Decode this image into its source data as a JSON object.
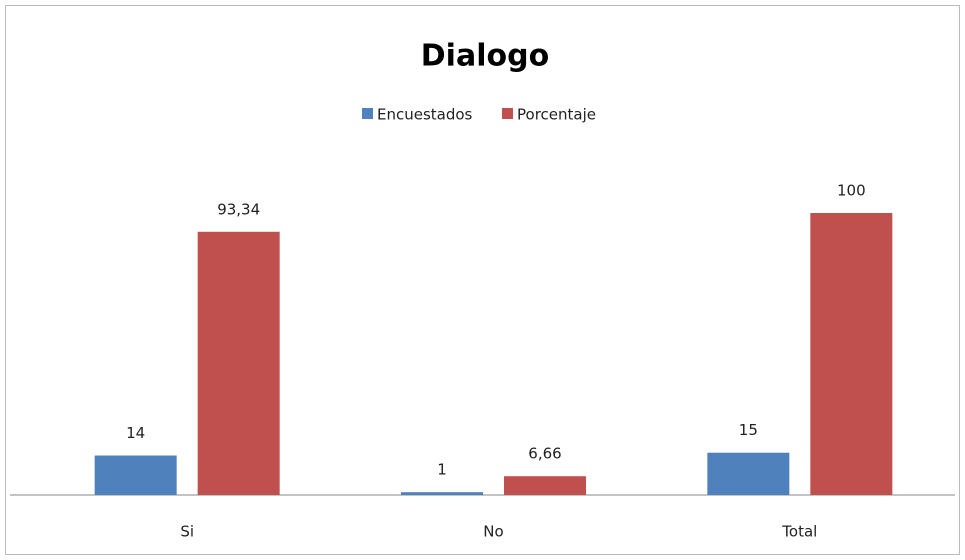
{
  "chart_data": {
    "type": "bar",
    "title": "Dialogo",
    "categories": [
      "Si",
      "No",
      "Total"
    ],
    "series": [
      {
        "name": "Encuestados",
        "color": "#4f81bd",
        "values": [
          14,
          1,
          15
        ]
      },
      {
        "name": "Porcentaje",
        "color": "#c0504d",
        "values": [
          93.34,
          6.66,
          100
        ],
        "value_labels": [
          "93,34",
          "6,66",
          "100"
        ]
      }
    ],
    "legend": "top"
  }
}
